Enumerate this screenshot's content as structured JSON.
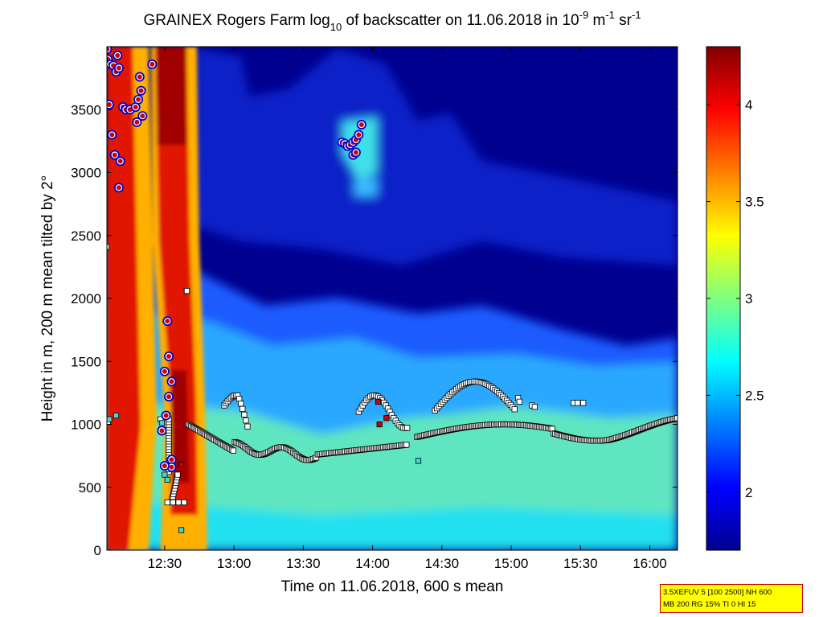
{
  "chart_data": {
    "type": "heatmap",
    "title": {
      "prefix": "GRAINEX Rogers Farm log",
      "sub10": "10",
      "middle": " of backscatter on 11.06.2018 in 10",
      "sup1": "-9",
      "middle2": " m",
      "sup2": "-1",
      "middle3": " sr",
      "sup3": "-1"
    },
    "xlabel": "Time on 11.06.2018, 600 s mean",
    "ylabel": "Height in m, 200 m mean tilted by 2°",
    "xlim_hours": [
      12.0833,
      16.2
    ],
    "ylim": [
      0,
      4000
    ],
    "x_ticks": [
      {
        "t": 12.5,
        "label": "12:30"
      },
      {
        "t": 13.0,
        "label": "13:00"
      },
      {
        "t": 13.5,
        "label": "13:30"
      },
      {
        "t": 14.0,
        "label": "14:00"
      },
      {
        "t": 14.5,
        "label": "14:30"
      },
      {
        "t": 15.0,
        "label": "15:00"
      },
      {
        "t": 15.5,
        "label": "15:30"
      },
      {
        "t": 16.0,
        "label": "16:00"
      }
    ],
    "y_ticks": [
      {
        "v": 0,
        "label": "0"
      },
      {
        "v": 500,
        "label": "500"
      },
      {
        "v": 1000,
        "label": "1000"
      },
      {
        "v": 1500,
        "label": "1500"
      },
      {
        "v": 2000,
        "label": "2000"
      },
      {
        "v": 2500,
        "label": "2500"
      },
      {
        "v": 3000,
        "label": "3000"
      },
      {
        "v": 3500,
        "label": "3500"
      }
    ],
    "colorbar": {
      "range": [
        1.7,
        4.3
      ],
      "ticks": [
        {
          "v": 2,
          "label": "2"
        },
        {
          "v": 2.5,
          "label": "2.5"
        },
        {
          "v": 3,
          "label": "3"
        },
        {
          "v": 3.5,
          "label": "3.5"
        },
        {
          "v": 4,
          "label": "4"
        }
      ],
      "colormap": "jet"
    },
    "field": {
      "colors": {
        "background_upper": "#00008f",
        "mixed_layer": "#5fe6c0",
        "surface": "#22e0f0",
        "plume_core": "#e01800",
        "plume_edge": "#ffb000",
        "cloud": "#40e0e8"
      }
    },
    "markers": {
      "square_fill": "#ffffff",
      "square_edge": "#000000",
      "circle_fill": "#cc0000",
      "circle_edge": "#ffffff",
      "circle_ring": "#0000cc",
      "circles": [
        {
          "t": 12.085,
          "h": 3980
        },
        {
          "t": 12.09,
          "h": 3900
        },
        {
          "t": 12.11,
          "h": 3860
        },
        {
          "t": 12.13,
          "h": 3850
        },
        {
          "t": 12.15,
          "h": 3800
        },
        {
          "t": 12.17,
          "h": 3830
        },
        {
          "t": 12.16,
          "h": 3930
        },
        {
          "t": 12.1,
          "h": 3540
        },
        {
          "t": 12.12,
          "h": 3300
        },
        {
          "t": 12.14,
          "h": 3140
        },
        {
          "t": 12.18,
          "h": 3090
        },
        {
          "t": 12.17,
          "h": 2880
        },
        {
          "t": 12.2,
          "h": 3520
        },
        {
          "t": 12.22,
          "h": 3500
        },
        {
          "t": 12.25,
          "h": 3500
        },
        {
          "t": 12.29,
          "h": 3520
        },
        {
          "t": 12.31,
          "h": 3580
        },
        {
          "t": 12.33,
          "h": 3650
        },
        {
          "t": 12.32,
          "h": 3760
        },
        {
          "t": 12.34,
          "h": 3450
        },
        {
          "t": 12.3,
          "h": 3400
        },
        {
          "t": 12.41,
          "h": 3860
        },
        {
          "t": 12.52,
          "h": 1820
        },
        {
          "t": 12.53,
          "h": 1540
        },
        {
          "t": 12.5,
          "h": 1420
        },
        {
          "t": 12.55,
          "h": 1340
        },
        {
          "t": 12.53,
          "h": 1220
        },
        {
          "t": 12.51,
          "h": 1070
        },
        {
          "t": 12.48,
          "h": 950
        },
        {
          "t": 12.55,
          "h": 720
        },
        {
          "t": 12.55,
          "h": 660
        },
        {
          "t": 12.5,
          "h": 670
        },
        {
          "t": 13.78,
          "h": 3240
        },
        {
          "t": 13.8,
          "h": 3230
        },
        {
          "t": 13.82,
          "h": 3210
        },
        {
          "t": 13.84,
          "h": 3220
        },
        {
          "t": 13.86,
          "h": 3240
        },
        {
          "t": 13.88,
          "h": 3260
        },
        {
          "t": 13.9,
          "h": 3300
        },
        {
          "t": 13.92,
          "h": 3380
        },
        {
          "t": 13.86,
          "h": 3140
        },
        {
          "t": 13.88,
          "h": 3160
        }
      ],
      "red_squares": [
        {
          "t": 12.62,
          "h": 680
        },
        {
          "t": 14.04,
          "h": 1180
        },
        {
          "t": 14.1,
          "h": 1050
        },
        {
          "t": 14.05,
          "h": 1000
        }
      ],
      "cyan_squares": [
        {
          "t": 12.1,
          "h": 1040
        },
        {
          "t": 12.15,
          "h": 1070
        },
        {
          "t": 12.48,
          "h": 1010
        },
        {
          "t": 12.5,
          "h": 600
        },
        {
          "t": 12.52,
          "h": 560
        },
        {
          "t": 12.62,
          "h": 160
        },
        {
          "t": 14.33,
          "h": 710
        }
      ]
    }
  },
  "info_box": {
    "line1": "3.5XEFUV 5 [100 2500] NH 600",
    "line2": "MB 200 RG 15% TI 0 HI 15"
  }
}
